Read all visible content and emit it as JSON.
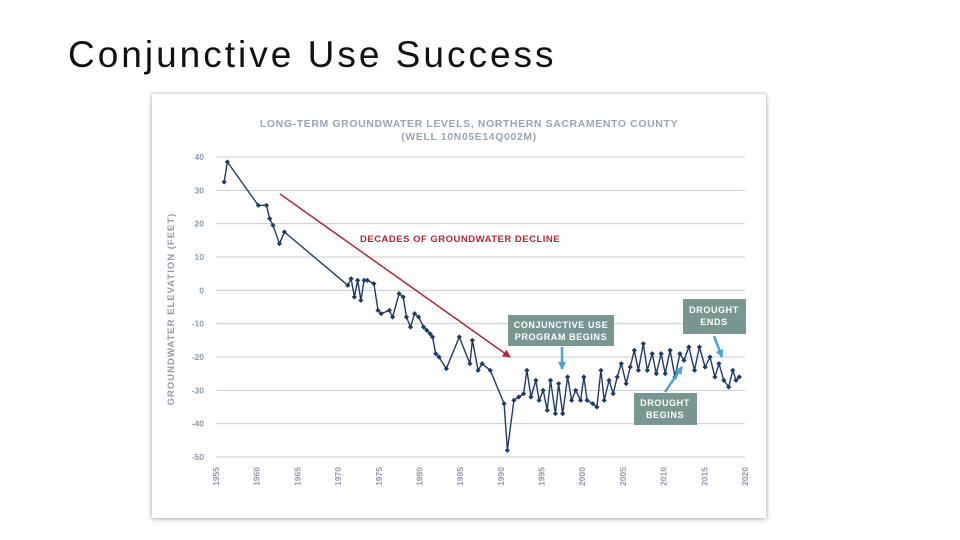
{
  "slide": {
    "title": "Conjunctive Use Success"
  },
  "chart_data": {
    "type": "line",
    "title_lines": [
      "LONG-TERM GROUNDWATER LEVELS, NORTHERN SACRAMENTO COUNTY",
      "(WELL 10N05E14Q002M)"
    ],
    "ylabel": "GROUNDWATER ELEVATION (FEET)",
    "xlabel": "",
    "xlim": [
      1955,
      2020
    ],
    "ylim": [
      -50,
      40
    ],
    "x_ticks": [
      "1955",
      "1960",
      "1965",
      "1970",
      "1975",
      "1980",
      "1985",
      "1990",
      "1995",
      "2000",
      "2005",
      "2010",
      "2015",
      "2020"
    ],
    "y_ticks": [
      "40",
      "30",
      "20",
      "10",
      "0",
      "-10",
      "-20",
      "-30",
      "-40",
      "-50"
    ],
    "grid": "horizontal",
    "colors": {
      "series": "#1f3a68",
      "grid": "#c8ccd2",
      "decline_arrow": "#b3263a",
      "box": "#7a9690",
      "box_arrow": "#4aa3dc"
    },
    "series": [
      {
        "x": [
          1956.0,
          1956.4,
          1960.2,
          1961.2,
          1961.6,
          1962.0,
          1962.8,
          1963.4,
          1971.2,
          1971.6,
          1972.0,
          1972.4,
          1972.8,
          1973.2,
          1973.6,
          1974.4,
          1974.9,
          1975.3,
          1976.3,
          1976.7,
          1977.5,
          1978.0,
          1978.4,
          1978.9,
          1979.4,
          1979.9,
          1980.5,
          1980.9,
          1981.3,
          1981.6,
          1982.0,
          1982.4,
          1983.3,
          1984.9,
          1986.2,
          1986.5,
          1987.2,
          1987.7,
          1988.7,
          1990.4,
          1990.8,
          1991.6,
          1992.2,
          1992.8,
          1993.2,
          1993.7,
          1994.3,
          1994.7,
          1995.2,
          1995.7,
          1996.1,
          1996.7,
          1997.1,
          1997.6,
          1998.2,
          1998.7,
          1999.2,
          1999.8,
          2000.2,
          2000.6,
          2001.3,
          2001.8,
          2002.3,
          2002.7,
          2003.3,
          2003.8,
          2004.3,
          2004.8,
          2005.4,
          2005.9,
          2006.4,
          2006.9,
          2007.5,
          2008.0,
          2008.6,
          2009.1,
          2009.7,
          2010.2,
          2010.8,
          2011.4,
          2012.0,
          2012.5,
          2013.1,
          2013.8,
          2014.4,
          2015.1,
          2015.7,
          2016.3,
          2016.8,
          2017.4,
          2018.0,
          2018.5,
          2018.9,
          2019.3
        ],
        "y": [
          32.5,
          38.5,
          25.5,
          25.5,
          21.5,
          19.5,
          14,
          17.5,
          1.5,
          3.5,
          -2,
          3,
          -3,
          3,
          3,
          2,
          -6,
          -7,
          -6,
          -8,
          -1,
          -2,
          -8,
          -11,
          -7,
          -8,
          -11,
          -12,
          -13,
          -14,
          -19,
          -20,
          -23.5,
          -14,
          -22,
          -15,
          -24,
          -22,
          -24,
          -34,
          -48,
          -33,
          -32,
          -31,
          -24,
          -32,
          -27,
          -33,
          -30,
          -36,
          -27,
          -37,
          -28,
          -37,
          -26,
          -33,
          -30,
          -33,
          -26,
          -33,
          -34,
          -35,
          -24,
          -33,
          -27,
          -31,
          -26,
          -22,
          -28,
          -23,
          -18,
          -24,
          -16,
          -24,
          -19,
          -25,
          -19,
          -25,
          -18,
          -26,
          -19,
          -21,
          -17,
          -24,
          -17,
          -23,
          -20,
          -26,
          -22,
          -27,
          -29,
          -24,
          -27,
          -26
        ]
      }
    ],
    "annotations": {
      "decline": "DECADES OF GROUNDWATER DECLINE",
      "program_begins": [
        "CONJUNCTIVE USE",
        "PROGRAM BEGINS"
      ],
      "drought_begins": [
        "DROUGHT",
        "BEGINS"
      ],
      "drought_ends": [
        "DROUGHT",
        "ENDS"
      ]
    }
  }
}
